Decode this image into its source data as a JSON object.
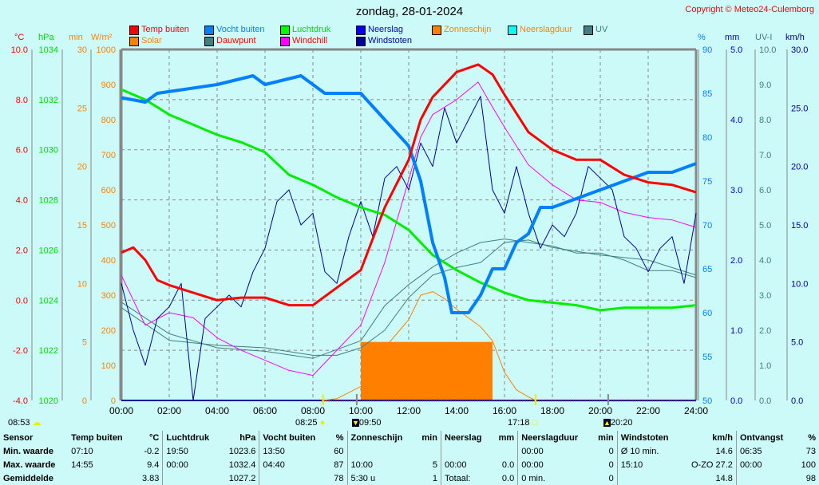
{
  "title": "zondag, 28-01-2024",
  "copyright": "Copyright © Meteo24-Culemborg",
  "legend": [
    {
      "label": "Temp buiten",
      "color": "#ff0000",
      "text_color": "#ff0000"
    },
    {
      "label": "Vocht buiten",
      "color": "#0080ff",
      "text_color": "#0080ff"
    },
    {
      "label": "Luchtdruk",
      "color": "#00ff00",
      "text_color": "#00dd00"
    },
    {
      "label": "Neerslag",
      "color": "#0000ff",
      "text_color": "#0000ff"
    },
    {
      "label": "Zonneschijn",
      "color": "#ff8000",
      "text_color": "#ff8000"
    },
    {
      "label": "Neerslagduur",
      "color": "#00ffff",
      "text_color": "#ff8000"
    },
    {
      "label": "UV",
      "color": "#408080",
      "text_color": "#408080"
    },
    {
      "label": "Solar",
      "color": "#ff8000",
      "text_color": "#ff8000"
    },
    {
      "label": "Dauwpunt",
      "color": "#408080",
      "text_color": "#ff0000"
    },
    {
      "label": "Windchill",
      "color": "#ff00ff",
      "text_color": "#ff0000"
    },
    {
      "label": "Windstoten",
      "color": "#000099",
      "text_color": "#000099"
    }
  ],
  "markers": {
    "left": "08:53",
    "sunrise": "08:25",
    "moonset": "09:50",
    "sunset": "17:18",
    "moonrise": "20:20"
  },
  "chart_data": {
    "type": "line",
    "title": "zondag, 28-01-2024",
    "x_ticks": [
      "00:00",
      "02:00",
      "04:00",
      "06:00",
      "08:00",
      "10:00",
      "12:00",
      "14:00",
      "16:00",
      "18:00",
      "20:00",
      "22:00",
      "24:00"
    ],
    "axes": {
      "temp": {
        "unit": "°C",
        "range": [
          -4,
          10
        ],
        "ticks": [
          "10.0",
          "8.0",
          "6.0",
          "4.0",
          "2.0",
          "0.0",
          "-2.0",
          "-4.0"
        ],
        "color": "#ff0000"
      },
      "pressure": {
        "unit": "hPa",
        "range": [
          1020,
          1034
        ],
        "ticks": [
          "1034",
          "1032",
          "1030",
          "1028",
          "1026",
          "1024",
          "1022",
          "1020"
        ],
        "color": "#00dd00"
      },
      "minutes": {
        "unit": "min",
        "range": [
          0,
          30
        ],
        "ticks": [
          "30",
          "25",
          "20",
          "15",
          "10",
          "5",
          "0"
        ],
        "color": "#ff8000"
      },
      "solar": {
        "unit": "W/m²",
        "range": [
          0,
          1000
        ],
        "ticks": [
          "1000",
          "900",
          "800",
          "700",
          "600",
          "500",
          "400",
          "300",
          "200",
          "100",
          "0"
        ],
        "color": "#ff8000"
      },
      "humidity": {
        "unit": "%",
        "range": [
          50,
          90
        ],
        "ticks": [
          "90",
          "85",
          "80",
          "75",
          "70",
          "65",
          "60",
          "55",
          "50"
        ],
        "color": "#0080ff"
      },
      "rain": {
        "unit": "mm",
        "range": [
          0,
          5
        ],
        "ticks": [
          "5.0",
          "4.0",
          "3.0",
          "2.0",
          "1.0",
          "0.0"
        ],
        "color": "#0000cc"
      },
      "uv": {
        "unit": "UV-I",
        "range": [
          0,
          10
        ],
        "ticks": [
          "10.0",
          "9.0",
          "8.0",
          "7.0",
          "6.0",
          "5.0",
          "4.0",
          "3.0",
          "2.0",
          "1.0",
          "0.0"
        ],
        "color": "#408080"
      },
      "wind": {
        "unit": "km/h",
        "range": [
          0,
          30
        ],
        "ticks": [
          "30.0",
          "25.0",
          "20.0",
          "15.0",
          "10.0",
          "5.0",
          "0.0"
        ],
        "color": "#000099"
      }
    },
    "series": [
      {
        "name": "Temp buiten",
        "axis": "temp",
        "color": "#ff0000",
        "width": 3,
        "x": [
          0,
          0.5,
          1,
          1.5,
          2,
          3,
          4,
          5,
          6,
          7,
          8,
          9,
          10,
          11,
          12,
          12.5,
          13,
          14,
          14.9,
          15.5,
          16,
          17,
          18,
          19,
          20,
          21,
          22,
          23,
          24
        ],
        "y": [
          1.9,
          2.1,
          1.6,
          0.8,
          0.6,
          0.3,
          0,
          0.1,
          0.1,
          -0.2,
          -0.2,
          0.5,
          1.2,
          3.7,
          5.6,
          7.2,
          8.1,
          9.1,
          9.4,
          9.0,
          8.2,
          6.7,
          6.0,
          5.6,
          5.6,
          5.0,
          4.7,
          4.6,
          4.3
        ]
      },
      {
        "name": "Vocht buiten",
        "axis": "humidity",
        "color": "#0080ff",
        "width": 4,
        "x": [
          0,
          1,
          1.5,
          4,
          5.5,
          6,
          7.5,
          8.5,
          10,
          11,
          12,
          12.5,
          13,
          13.5,
          13.8,
          14.5,
          15,
          15.5,
          16,
          16.5,
          17,
          17.5,
          18,
          19,
          20,
          21,
          22,
          23,
          24
        ],
        "y": [
          84.5,
          84,
          85,
          86,
          87,
          86,
          87,
          85,
          85,
          82,
          79,
          75,
          68,
          64,
          60,
          60,
          62,
          65,
          65,
          68,
          69,
          72,
          72,
          73,
          74,
          75,
          76,
          76,
          77
        ]
      },
      {
        "name": "Luchtdruk",
        "axis": "pressure",
        "color": "#00ee00",
        "width": 3,
        "x": [
          0,
          1,
          2,
          3,
          4,
          5,
          6,
          7,
          8,
          9,
          10,
          11,
          12,
          13,
          14,
          15,
          16,
          17,
          18,
          19,
          20,
          21,
          22,
          23,
          24
        ],
        "y": [
          1032.4,
          1032.0,
          1031.4,
          1031.0,
          1030.6,
          1030.3,
          1029.9,
          1029.0,
          1028.6,
          1028.1,
          1027.7,
          1027.4,
          1026.8,
          1025.8,
          1025.2,
          1024.7,
          1024.3,
          1024.0,
          1023.9,
          1023.8,
          1023.6,
          1023.7,
          1023.7,
          1023.7,
          1023.8
        ]
      },
      {
        "name": "Windchill",
        "axis": "temp",
        "color": "#ff00ff",
        "width": 1,
        "x": [
          0,
          1,
          2,
          3,
          4,
          5,
          6,
          7,
          8,
          9,
          10,
          11,
          12,
          12.5,
          13,
          14,
          14.9,
          15.5,
          16,
          17,
          18,
          19,
          20,
          21,
          22,
          23,
          24
        ],
        "y": [
          1.0,
          -1.0,
          -0.5,
          -0.7,
          -1.5,
          -2.0,
          -2.4,
          -2.8,
          -3.0,
          -2.0,
          -1.0,
          1.5,
          4.8,
          6.5,
          7.4,
          8.0,
          8.7,
          7.7,
          6.9,
          5.4,
          4.6,
          4.0,
          3.9,
          3.5,
          3.3,
          3.2,
          2.9
        ]
      },
      {
        "name": "Dauwpunt",
        "axis": "temp",
        "color": "#408080",
        "width": 1,
        "x": [
          0,
          2,
          4,
          6,
          8,
          9,
          10,
          11,
          12,
          13,
          14,
          15,
          16,
          17,
          18,
          20,
          22,
          24
        ],
        "y": [
          -0.3,
          -1.6,
          -1.8,
          -1.9,
          -2.2,
          -2.2,
          -1.9,
          -1.2,
          0.1,
          1.0,
          1.3,
          1.5,
          2.3,
          2.4,
          2.1,
          1.8,
          1.6,
          1.0
        ]
      },
      {
        "name": "Windstoten",
        "axis": "wind",
        "color": "#000099",
        "width": 1,
        "x": [
          0,
          0.5,
          1,
          1.5,
          2,
          2.5,
          3,
          3.5,
          4,
          4.5,
          5,
          5.5,
          6,
          6.5,
          7,
          7.5,
          8,
          8.5,
          9,
          9.5,
          10,
          10.5,
          11,
          11.5,
          12,
          12.5,
          13,
          13.5,
          14,
          14.5,
          15,
          15.5,
          16,
          16.5,
          17,
          17.5,
          18,
          18.5,
          19,
          19.5,
          20,
          20.5,
          21,
          21.5,
          22,
          22.5,
          23,
          23.5,
          24
        ],
        "y": [
          10,
          6,
          3,
          7,
          8,
          10,
          0,
          7,
          8,
          9,
          8,
          11,
          13,
          17,
          18,
          15,
          16,
          11,
          10,
          14,
          17,
          14,
          19,
          20,
          18,
          22,
          20,
          25,
          22,
          24,
          26,
          18,
          16,
          20,
          16,
          13,
          15,
          14,
          16,
          20,
          19,
          18,
          14,
          13,
          11,
          13,
          14,
          10,
          16
        ]
      },
      {
        "name": "Solar",
        "axis": "solar",
        "color": "#ff8000",
        "width": 1,
        "x": [
          8.42,
          9,
          10,
          11,
          12,
          12.5,
          13,
          13.5,
          14,
          15,
          15.5,
          16,
          16.5,
          17,
          17.3
        ],
        "y": [
          0,
          5,
          40,
          150,
          230,
          300,
          310,
          290,
          260,
          210,
          170,
          80,
          30,
          10,
          0
        ]
      },
      {
        "name": "UV",
        "axis": "uv",
        "color": "#408080",
        "width": 1,
        "x": [
          0,
          2,
          4,
          6,
          8,
          10,
          11,
          12,
          13,
          14,
          15,
          16,
          17,
          18,
          19,
          20,
          21,
          22,
          23,
          24
        ],
        "y": [
          2.8,
          1.9,
          1.5,
          1.4,
          1.2,
          1.7,
          2.7,
          3.3,
          3.8,
          4.2,
          4.5,
          4.6,
          4.5,
          4.4,
          4.2,
          4.2,
          4.0,
          3.7,
          3.7,
          3.5
        ]
      }
    ],
    "bars": [
      {
        "name": "Zonneschijn",
        "axis": "minutes",
        "color": "#ff8000",
        "from": 10,
        "to": 15.5,
        "value": 5
      }
    ]
  },
  "stats": {
    "headers": [
      [
        "Sensor",
        ""
      ],
      [
        "Temp buiten",
        "°C"
      ],
      [
        "Luchtdruk",
        "hPa"
      ],
      [
        "Vocht buiten",
        "%"
      ],
      [
        "Zonneschijn",
        "min"
      ],
      [
        "Neerslag",
        "mm"
      ],
      [
        "Neerslagduur",
        "min"
      ],
      [
        "Windstoten",
        "km/h"
      ],
      [
        "Ontvangst",
        "%"
      ]
    ],
    "rows": [
      [
        "Min. waarde",
        "07:10",
        "-0.2",
        "19:50",
        "1023.6",
        "13:50",
        "60",
        "",
        "",
        "",
        "",
        "00:00",
        "0",
        "Ø 10 min.",
        "14.6",
        "06:35",
        "73"
      ],
      [
        "Max. waarde",
        "14:55",
        "9.4",
        "00:00",
        "1032.4",
        "04:40",
        "87",
        "10:00",
        "5",
        "00:00",
        "0.0",
        "00:00",
        "0",
        "15:10",
        "O-ZO 27.2",
        "00:00",
        "100"
      ],
      [
        "Gemiddelde",
        "",
        "3.83",
        "",
        "1027.2",
        "",
        "78",
        "5:30 u",
        "1",
        "Totaal:",
        "0.0",
        "0 min.",
        "0",
        "",
        "14.8",
        "",
        "98"
      ]
    ]
  }
}
